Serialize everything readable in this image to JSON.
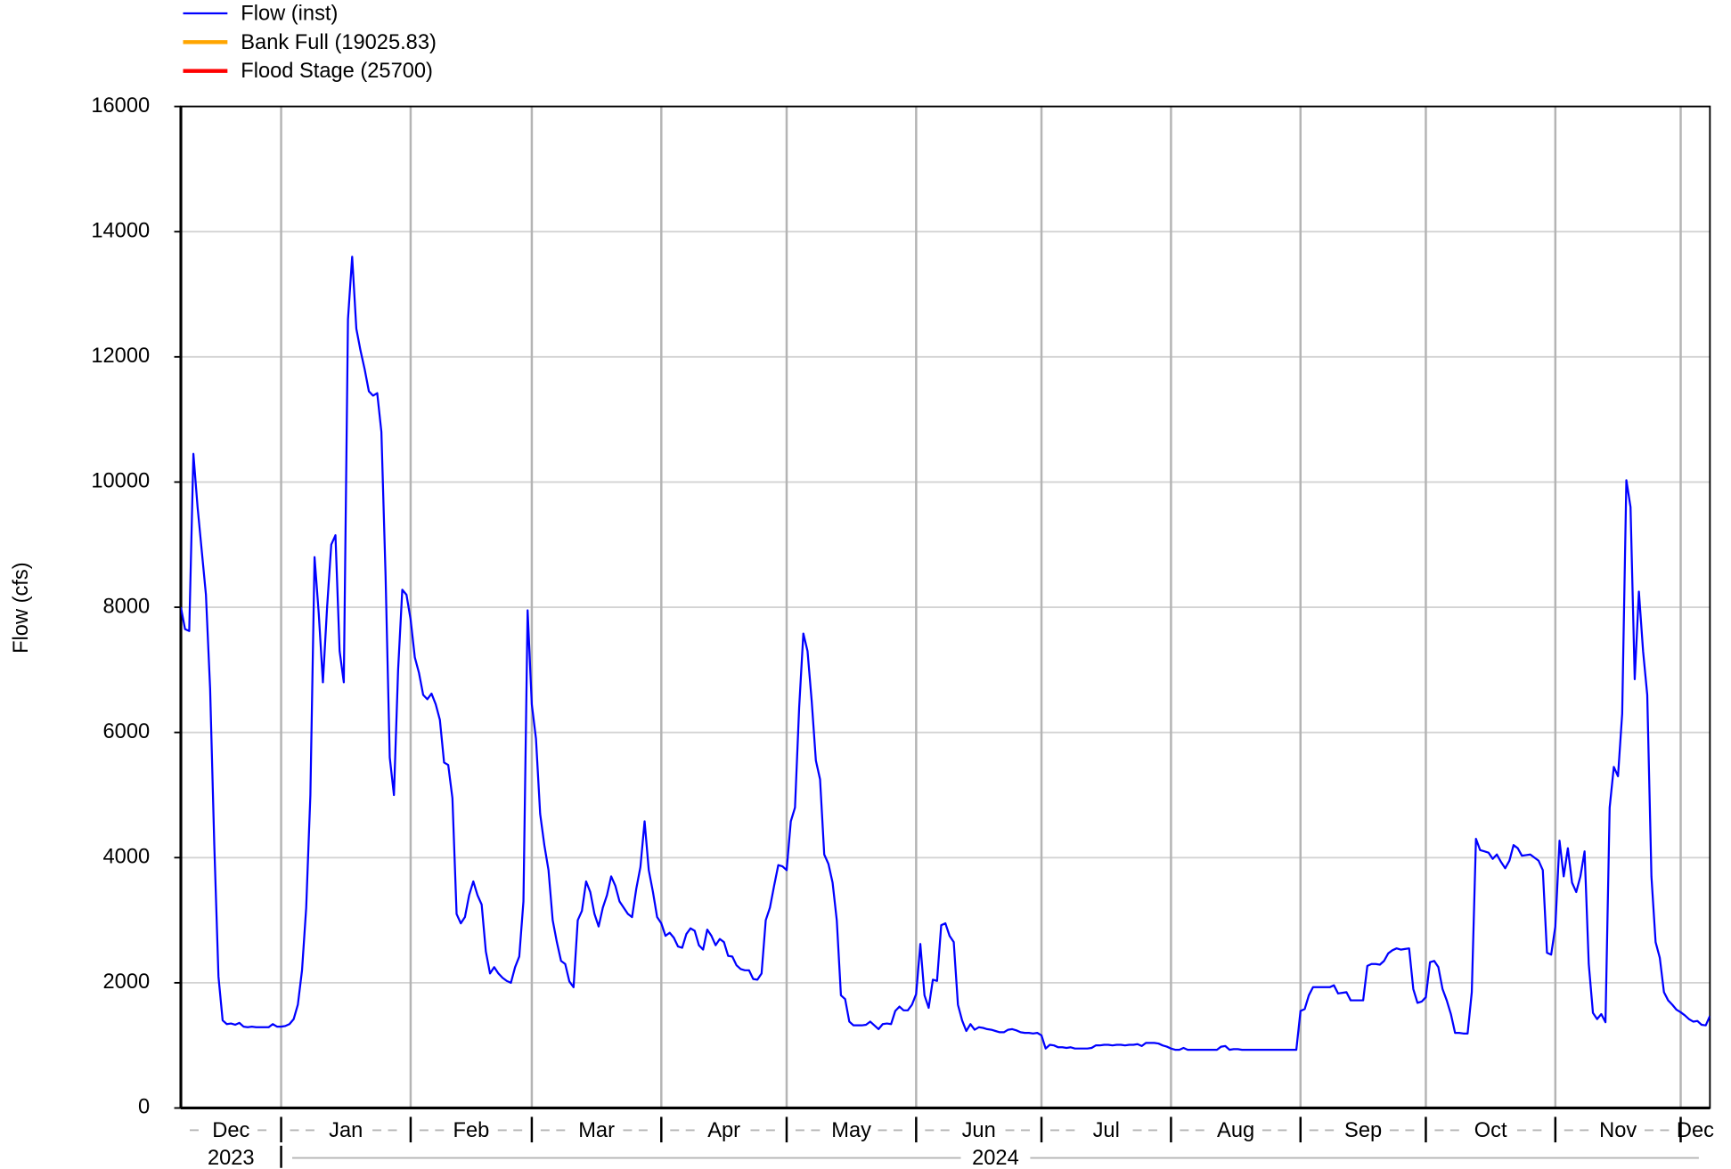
{
  "chart_data": {
    "type": "line",
    "y_label": "Flow (cfs)",
    "xlim": [
      "2023-12-08",
      "2024-12-08"
    ],
    "ylim": [
      0,
      16000
    ],
    "yticks": [
      0,
      2000,
      4000,
      6000,
      8000,
      10000,
      12000,
      14000,
      16000
    ],
    "xticks": [
      {
        "value": "2023-12-01",
        "label": "Dec"
      },
      {
        "value": "2024-01-01",
        "label": "Jan"
      },
      {
        "value": "2024-02-01",
        "label": "Feb"
      },
      {
        "value": "2024-03-01",
        "label": "Mar"
      },
      {
        "value": "2024-04-01",
        "label": "Apr"
      },
      {
        "value": "2024-05-01",
        "label": "May"
      },
      {
        "value": "2024-06-01",
        "label": "Jun"
      },
      {
        "value": "2024-07-01",
        "label": "Jul"
      },
      {
        "value": "2024-08-01",
        "label": "Aug"
      },
      {
        "value": "2024-09-01",
        "label": "Sep"
      },
      {
        "value": "2024-10-01",
        "label": "Oct"
      },
      {
        "value": "2024-11-01",
        "label": "Nov"
      },
      {
        "value": "2024-12-01",
        "label": "Dec"
      }
    ],
    "years": [
      {
        "value": "2023-01-01",
        "label": "2023"
      },
      {
        "value": "2024-01-01",
        "label": "2024"
      }
    ],
    "grid": true,
    "x": [
      "2023-12-08",
      "2023-12-09",
      "2023-12-10",
      "2023-12-11",
      "2023-12-12",
      "2023-12-13",
      "2023-12-14",
      "2023-12-15",
      "2023-12-16",
      "2023-12-17",
      "2023-12-18",
      "2023-12-19",
      "2023-12-20",
      "2023-12-21",
      "2023-12-22",
      "2023-12-23",
      "2023-12-24",
      "2023-12-25",
      "2023-12-26",
      "2023-12-27",
      "2023-12-28",
      "2023-12-29",
      "2023-12-30",
      "2023-12-31",
      "2024-01-01",
      "2024-01-02",
      "2024-01-03",
      "2024-01-04",
      "2024-01-05",
      "2024-01-06",
      "2024-01-07",
      "2024-01-08",
      "2024-01-09",
      "2024-01-10",
      "2024-01-11",
      "2024-01-12",
      "2024-01-13",
      "2024-01-14",
      "2024-01-15",
      "2024-01-16",
      "2024-01-17",
      "2024-01-18",
      "2024-01-19",
      "2024-01-20",
      "2024-01-21",
      "2024-01-22",
      "2024-01-23",
      "2024-01-24",
      "2024-01-25",
      "2024-01-26",
      "2024-01-27",
      "2024-01-28",
      "2024-01-29",
      "2024-01-30",
      "2024-01-31",
      "2024-02-01",
      "2024-02-02",
      "2024-02-03",
      "2024-02-04",
      "2024-02-05",
      "2024-02-06",
      "2024-02-07",
      "2024-02-08",
      "2024-02-09",
      "2024-02-10",
      "2024-02-11",
      "2024-02-12",
      "2024-02-13",
      "2024-02-14",
      "2024-02-15",
      "2024-02-16",
      "2024-02-17",
      "2024-02-18",
      "2024-02-19",
      "2024-02-20",
      "2024-02-21",
      "2024-02-22",
      "2024-02-23",
      "2024-02-24",
      "2024-02-25",
      "2024-02-26",
      "2024-02-27",
      "2024-02-28",
      "2024-02-29",
      "2024-03-01",
      "2024-03-02",
      "2024-03-03",
      "2024-03-04",
      "2024-03-05",
      "2024-03-06",
      "2024-03-07",
      "2024-03-08",
      "2024-03-09",
      "2024-03-10",
      "2024-03-11",
      "2024-03-12",
      "2024-03-13",
      "2024-03-14",
      "2024-03-15",
      "2024-03-16",
      "2024-03-17",
      "2024-03-18",
      "2024-03-19",
      "2024-03-20",
      "2024-03-21",
      "2024-03-22",
      "2024-03-23",
      "2024-03-24",
      "2024-03-25",
      "2024-03-26",
      "2024-03-27",
      "2024-03-28",
      "2024-03-29",
      "2024-03-30",
      "2024-03-31",
      "2024-04-01",
      "2024-04-02",
      "2024-04-03",
      "2024-04-04",
      "2024-04-05",
      "2024-04-06",
      "2024-04-07",
      "2024-04-08",
      "2024-04-09",
      "2024-04-10",
      "2024-04-11",
      "2024-04-12",
      "2024-04-13",
      "2024-04-14",
      "2024-04-15",
      "2024-04-16",
      "2024-04-17",
      "2024-04-18",
      "2024-04-19",
      "2024-04-20",
      "2024-04-21",
      "2024-04-22",
      "2024-04-23",
      "2024-04-24",
      "2024-04-25",
      "2024-04-26",
      "2024-04-27",
      "2024-04-28",
      "2024-04-29",
      "2024-04-30",
      "2024-05-01",
      "2024-05-02",
      "2024-05-03",
      "2024-05-04",
      "2024-05-05",
      "2024-05-06",
      "2024-05-07",
      "2024-05-08",
      "2024-05-09",
      "2024-05-10",
      "2024-05-11",
      "2024-05-12",
      "2024-05-13",
      "2024-05-14",
      "2024-05-15",
      "2024-05-16",
      "2024-05-17",
      "2024-05-18",
      "2024-05-19",
      "2024-05-20",
      "2024-05-21",
      "2024-05-22",
      "2024-05-23",
      "2024-05-24",
      "2024-05-25",
      "2024-05-26",
      "2024-05-27",
      "2024-05-28",
      "2024-05-29",
      "2024-05-30",
      "2024-05-31",
      "2024-06-01",
      "2024-06-02",
      "2024-06-03",
      "2024-06-04",
      "2024-06-05",
      "2024-06-06",
      "2024-06-07",
      "2024-06-08",
      "2024-06-09",
      "2024-06-10",
      "2024-06-11",
      "2024-06-12",
      "2024-06-13",
      "2024-06-14",
      "2024-06-15",
      "2024-06-16",
      "2024-06-17",
      "2024-06-18",
      "2024-06-19",
      "2024-06-20",
      "2024-06-21",
      "2024-06-22",
      "2024-06-23",
      "2024-06-24",
      "2024-06-25",
      "2024-06-26",
      "2024-06-27",
      "2024-06-28",
      "2024-06-29",
      "2024-06-30",
      "2024-07-01",
      "2024-07-02",
      "2024-07-03",
      "2024-07-04",
      "2024-07-05",
      "2024-07-06",
      "2024-07-07",
      "2024-07-08",
      "2024-07-09",
      "2024-07-10",
      "2024-07-11",
      "2024-07-12",
      "2024-07-13",
      "2024-07-14",
      "2024-07-15",
      "2024-07-16",
      "2024-07-17",
      "2024-07-18",
      "2024-07-19",
      "2024-07-20",
      "2024-07-21",
      "2024-07-22",
      "2024-07-23",
      "2024-07-24",
      "2024-07-25",
      "2024-07-26",
      "2024-07-27",
      "2024-07-28",
      "2024-07-29",
      "2024-07-30",
      "2024-07-31",
      "2024-08-01",
      "2024-08-02",
      "2024-08-03",
      "2024-08-04",
      "2024-08-05",
      "2024-08-06",
      "2024-08-07",
      "2024-08-08",
      "2024-08-09",
      "2024-08-10",
      "2024-08-11",
      "2024-08-12",
      "2024-08-13",
      "2024-08-14",
      "2024-08-15",
      "2024-08-16",
      "2024-08-17",
      "2024-08-18",
      "2024-08-19",
      "2024-08-20",
      "2024-08-21",
      "2024-08-22",
      "2024-08-23",
      "2024-08-24",
      "2024-08-25",
      "2024-08-26",
      "2024-08-27",
      "2024-08-28",
      "2024-08-29",
      "2024-08-30",
      "2024-08-31",
      "2024-09-01",
      "2024-09-02",
      "2024-09-03",
      "2024-09-04",
      "2024-09-05",
      "2024-09-06",
      "2024-09-07",
      "2024-09-08",
      "2024-09-09",
      "2024-09-10",
      "2024-09-11",
      "2024-09-12",
      "2024-09-13",
      "2024-09-14",
      "2024-09-15",
      "2024-09-16",
      "2024-09-17",
      "2024-09-18",
      "2024-09-19",
      "2024-09-20",
      "2024-09-21",
      "2024-09-22",
      "2024-09-23",
      "2024-09-24",
      "2024-09-25",
      "2024-09-26",
      "2024-09-27",
      "2024-09-28",
      "2024-09-29",
      "2024-09-30",
      "2024-10-01",
      "2024-10-02",
      "2024-10-03",
      "2024-10-04",
      "2024-10-05",
      "2024-10-06",
      "2024-10-07",
      "2024-10-08",
      "2024-10-09",
      "2024-10-10",
      "2024-10-11",
      "2024-10-12",
      "2024-10-13",
      "2024-10-14",
      "2024-10-15",
      "2024-10-16",
      "2024-10-17",
      "2024-10-18",
      "2024-10-19",
      "2024-10-20",
      "2024-10-21",
      "2024-10-22",
      "2024-10-23",
      "2024-10-24",
      "2024-10-25",
      "2024-10-26",
      "2024-10-27",
      "2024-10-28",
      "2024-10-29",
      "2024-10-30",
      "2024-10-31",
      "2024-11-01",
      "2024-11-02",
      "2024-11-03",
      "2024-11-04",
      "2024-11-05",
      "2024-11-06",
      "2024-11-07",
      "2024-11-08",
      "2024-11-09",
      "2024-11-10",
      "2024-11-11",
      "2024-11-12",
      "2024-11-13",
      "2024-11-14",
      "2024-11-15",
      "2024-11-16",
      "2024-11-17",
      "2024-11-18",
      "2024-11-19",
      "2024-11-20",
      "2024-11-21",
      "2024-11-22",
      "2024-11-23",
      "2024-11-24",
      "2024-11-25",
      "2024-11-26",
      "2024-11-27",
      "2024-11-28",
      "2024-11-29",
      "2024-11-30",
      "2024-12-01",
      "2024-12-02",
      "2024-12-03",
      "2024-12-04",
      "2024-12-05",
      "2024-12-06",
      "2024-12-07",
      "2024-12-08"
    ],
    "series": [
      {
        "name": "Flow (inst)",
        "color": "#0000ff",
        "values": [
          8000,
          7650,
          7620,
          10450,
          9600,
          8900,
          8200,
          6700,
          4200,
          2100,
          1400,
          1340,
          1350,
          1330,
          1360,
          1300,
          1290,
          1300,
          1290,
          1290,
          1290,
          1290,
          1340,
          1300,
          1300,
          1310,
          1340,
          1420,
          1650,
          2200,
          3200,
          5000,
          8800,
          7900,
          6800,
          8000,
          9000,
          9150,
          7300,
          6800,
          12600,
          13600,
          12450,
          12100,
          11800,
          11450,
          11380,
          11420,
          10800,
          8500,
          5600,
          5000,
          7000,
          8280,
          8200,
          7800,
          7200,
          6950,
          6600,
          6530,
          6620,
          6450,
          6200,
          5520,
          5480,
          4950,
          3100,
          2950,
          3050,
          3400,
          3620,
          3400,
          3250,
          2500,
          2150,
          2250,
          2150,
          2080,
          2030,
          2000,
          2250,
          2420,
          3300,
          7950,
          6450,
          5900,
          4700,
          4200,
          3800,
          3000,
          2650,
          2350,
          2300,
          2020,
          1930,
          3000,
          3150,
          3620,
          3450,
          3100,
          2900,
          3200,
          3400,
          3700,
          3550,
          3300,
          3200,
          3100,
          3050,
          3500,
          3850,
          4580,
          3800,
          3450,
          3050,
          2950,
          2750,
          2800,
          2720,
          2580,
          2560,
          2780,
          2870,
          2830,
          2600,
          2530,
          2850,
          2750,
          2600,
          2700,
          2650,
          2430,
          2420,
          2280,
          2220,
          2200,
          2200,
          2060,
          2050,
          2150,
          3000,
          3200,
          3550,
          3880,
          3860,
          3800,
          4580,
          4800,
          6400,
          7580,
          7300,
          6500,
          5550,
          5250,
          4050,
          3900,
          3600,
          3000,
          1800,
          1740,
          1380,
          1320,
          1320,
          1320,
          1330,
          1380,
          1320,
          1260,
          1340,
          1350,
          1340,
          1550,
          1620,
          1560,
          1560,
          1650,
          1820,
          2620,
          1800,
          1600,
          2050,
          2030,
          2920,
          2950,
          2750,
          2650,
          1650,
          1400,
          1230,
          1340,
          1250,
          1290,
          1280,
          1260,
          1250,
          1230,
          1210,
          1210,
          1250,
          1260,
          1240,
          1210,
          1200,
          1200,
          1190,
          1200,
          1160,
          950,
          1010,
          1000,
          970,
          970,
          960,
          970,
          950,
          950,
          950,
          950,
          960,
          1000,
          1000,
          1010,
          1010,
          1000,
          1010,
          1010,
          1000,
          1010,
          1010,
          1020,
          990,
          1040,
          1040,
          1040,
          1030,
          1000,
          980,
          950,
          930,
          930,
          960,
          930,
          930,
          930,
          930,
          930,
          930,
          930,
          930,
          980,
          990,
          930,
          940,
          940,
          930,
          930,
          930,
          930,
          930,
          930,
          930,
          930,
          930,
          930,
          930,
          930,
          930,
          930,
          1550,
          1580,
          1800,
          1930,
          1930,
          1930,
          1930,
          1930,
          1960,
          1830,
          1840,
          1850,
          1720,
          1720,
          1720,
          1720,
          2270,
          2300,
          2300,
          2290,
          2350,
          2470,
          2520,
          2550,
          2530,
          2540,
          2550,
          1900,
          1680,
          1700,
          1770,
          2330,
          2350,
          2250,
          1900,
          1720,
          1500,
          1200,
          1200,
          1190,
          1190,
          1850,
          4300,
          4120,
          4100,
          4080,
          3980,
          4050,
          3930,
          3830,
          3950,
          4200,
          4150,
          4030,
          4040,
          4050,
          4000,
          3950,
          3800,
          2480,
          2450,
          2900,
          4270,
          3700,
          4150,
          3600,
          3450,
          3700,
          4100,
          2300,
          1520,
          1420,
          1500,
          1370,
          4800,
          5450,
          5300,
          6300,
          10030,
          9600,
          6850,
          8250,
          7300,
          6600,
          3700,
          2650,
          2400,
          1850,
          1720,
          1650,
          1570,
          1530,
          1480,
          1420,
          1380,
          1390,
          1330,
          1320,
          1470
        ]
      }
    ],
    "thresholds": [
      {
        "name": "Bank Full (19025.83)",
        "color": "#ffa500",
        "value": 19025.83
      },
      {
        "name": "Flood Stage (25700)",
        "color": "#ff0000",
        "value": 25700
      }
    ]
  }
}
